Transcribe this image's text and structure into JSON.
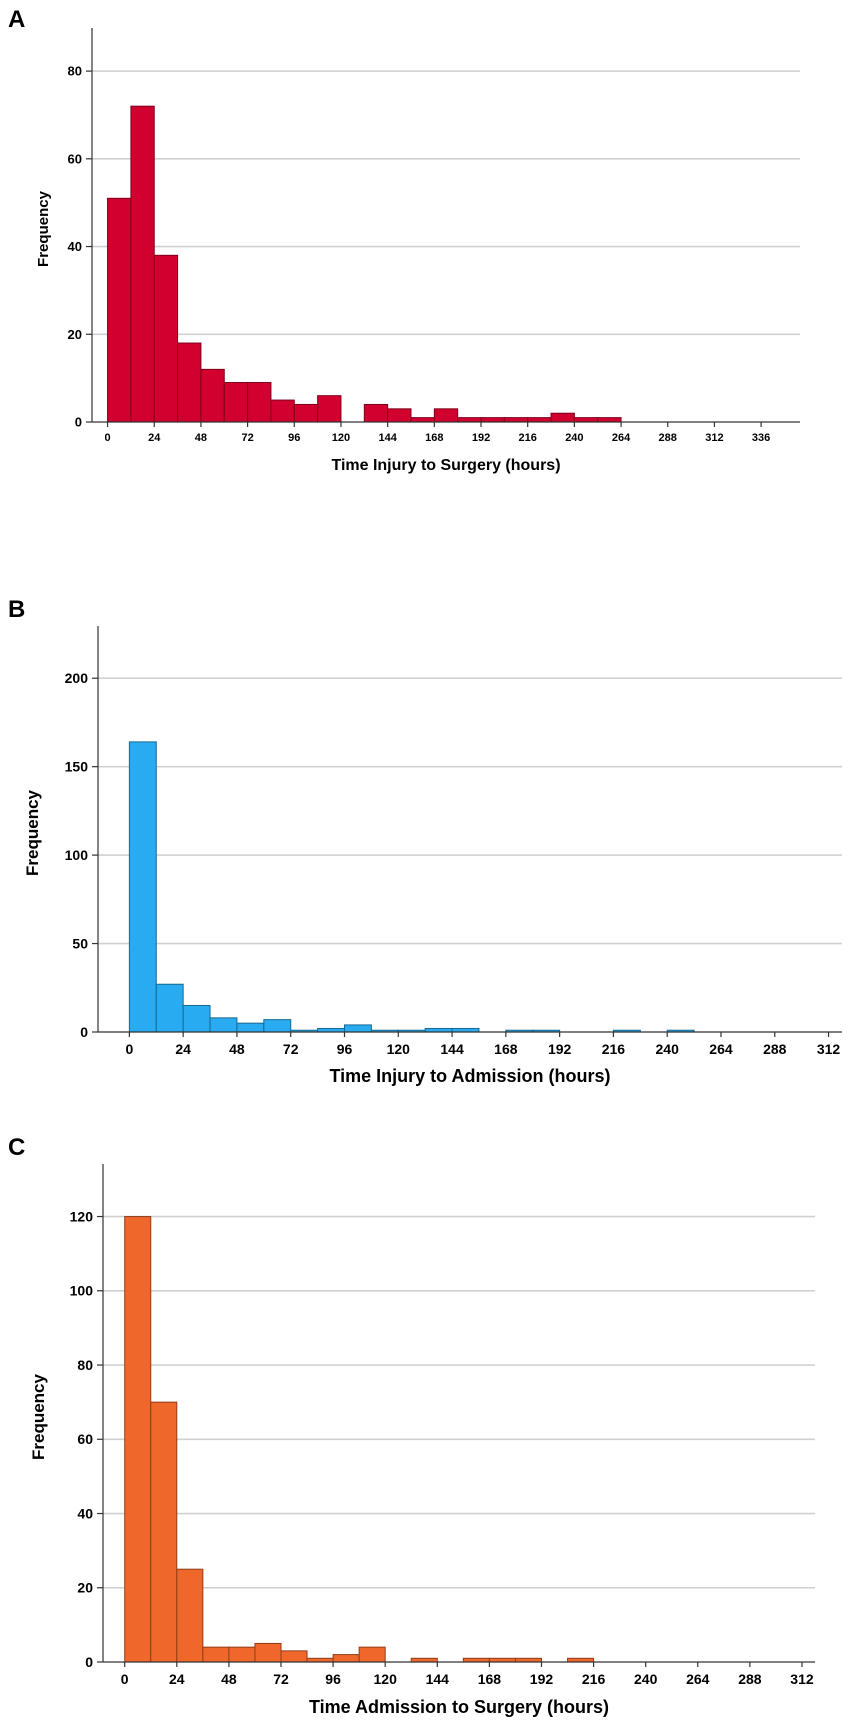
{
  "chart_data": [
    {
      "type": "bar",
      "panel": "A",
      "xlabel": "Time Injury to Surgery (hours)",
      "ylabel": "Frequency",
      "ylim": [
        0,
        88
      ],
      "xlim": [
        -8,
        356
      ],
      "y_ticks": [
        0,
        20,
        40,
        60,
        80
      ],
      "x_ticks": [
        "0",
        "24",
        "48",
        "72",
        "96",
        "120",
        "144",
        "168",
        "192",
        "216",
        "240",
        "264",
        "288",
        "312",
        "336"
      ],
      "x_tick_values": [
        0,
        24,
        48,
        72,
        96,
        120,
        144,
        168,
        192,
        216,
        240,
        264,
        288,
        312,
        336
      ],
      "bin_width": 12,
      "bin_starts": [
        0,
        12,
        24,
        36,
        48,
        60,
        72,
        84,
        96,
        108,
        120,
        132,
        144,
        156,
        168,
        180,
        192,
        204,
        216,
        228,
        240,
        252,
        264,
        276,
        288,
        300
      ],
      "values": [
        51,
        72,
        38,
        18,
        12,
        9,
        9,
        5,
        4,
        6,
        0,
        4,
        3,
        1,
        3,
        1,
        1,
        1,
        1,
        2,
        1,
        1,
        0,
        0,
        0,
        0
      ],
      "color": "#d1002f",
      "grid": true
    },
    {
      "type": "bar",
      "panel": "B",
      "xlabel": "Time Injury to Admission (hours)",
      "ylabel": "Frequency",
      "ylim": [
        0,
        225
      ],
      "xlim": [
        -14,
        318
      ],
      "y_ticks": [
        0,
        50,
        100,
        150,
        200
      ],
      "x_ticks": [
        "0",
        "24",
        "48",
        "72",
        "96",
        "120",
        "144",
        "168",
        "192",
        "216",
        "240",
        "264",
        "288",
        "312"
      ],
      "x_tick_values": [
        0,
        24,
        48,
        72,
        96,
        120,
        144,
        168,
        192,
        216,
        240,
        264,
        288,
        312
      ],
      "bin_width": 12,
      "bin_starts": [
        0,
        12,
        24,
        36,
        48,
        60,
        72,
        84,
        96,
        108,
        120,
        132,
        144,
        156,
        168,
        180,
        192,
        204,
        216,
        228,
        240,
        252
      ],
      "values": [
        164,
        27,
        15,
        8,
        5,
        7,
        1,
        2,
        4,
        1,
        1,
        2,
        2,
        0,
        1,
        1,
        0,
        0,
        1,
        0,
        1,
        0
      ],
      "color": "#29abf1",
      "grid": true
    },
    {
      "type": "bar",
      "panel": "C",
      "xlabel": "Time Admission to Surgery (hours)",
      "ylabel": "Frequency",
      "ylim": [
        0,
        132
      ],
      "xlim": [
        -10,
        318
      ],
      "y_ticks": [
        0,
        20,
        40,
        60,
        80,
        100,
        120
      ],
      "x_ticks": [
        "0",
        "24",
        "48",
        "72",
        "96",
        "120",
        "144",
        "168",
        "192",
        "216",
        "240",
        "264",
        "288",
        "312"
      ],
      "x_tick_values": [
        0,
        24,
        48,
        72,
        96,
        120,
        144,
        168,
        192,
        216,
        240,
        264,
        288,
        312
      ],
      "bin_width": 12,
      "bin_starts": [
        0,
        12,
        24,
        36,
        48,
        60,
        72,
        84,
        96,
        108,
        120,
        132,
        144,
        156,
        168,
        180,
        192,
        204,
        216,
        228,
        240,
        252,
        264,
        276,
        288
      ],
      "values": [
        120,
        70,
        25,
        4,
        4,
        5,
        3,
        1,
        2,
        4,
        0,
        1,
        0,
        1,
        1,
        1,
        0,
        1,
        0,
        0,
        0,
        0,
        0,
        0,
        0
      ],
      "color": "#f0672c",
      "grid": true
    }
  ]
}
